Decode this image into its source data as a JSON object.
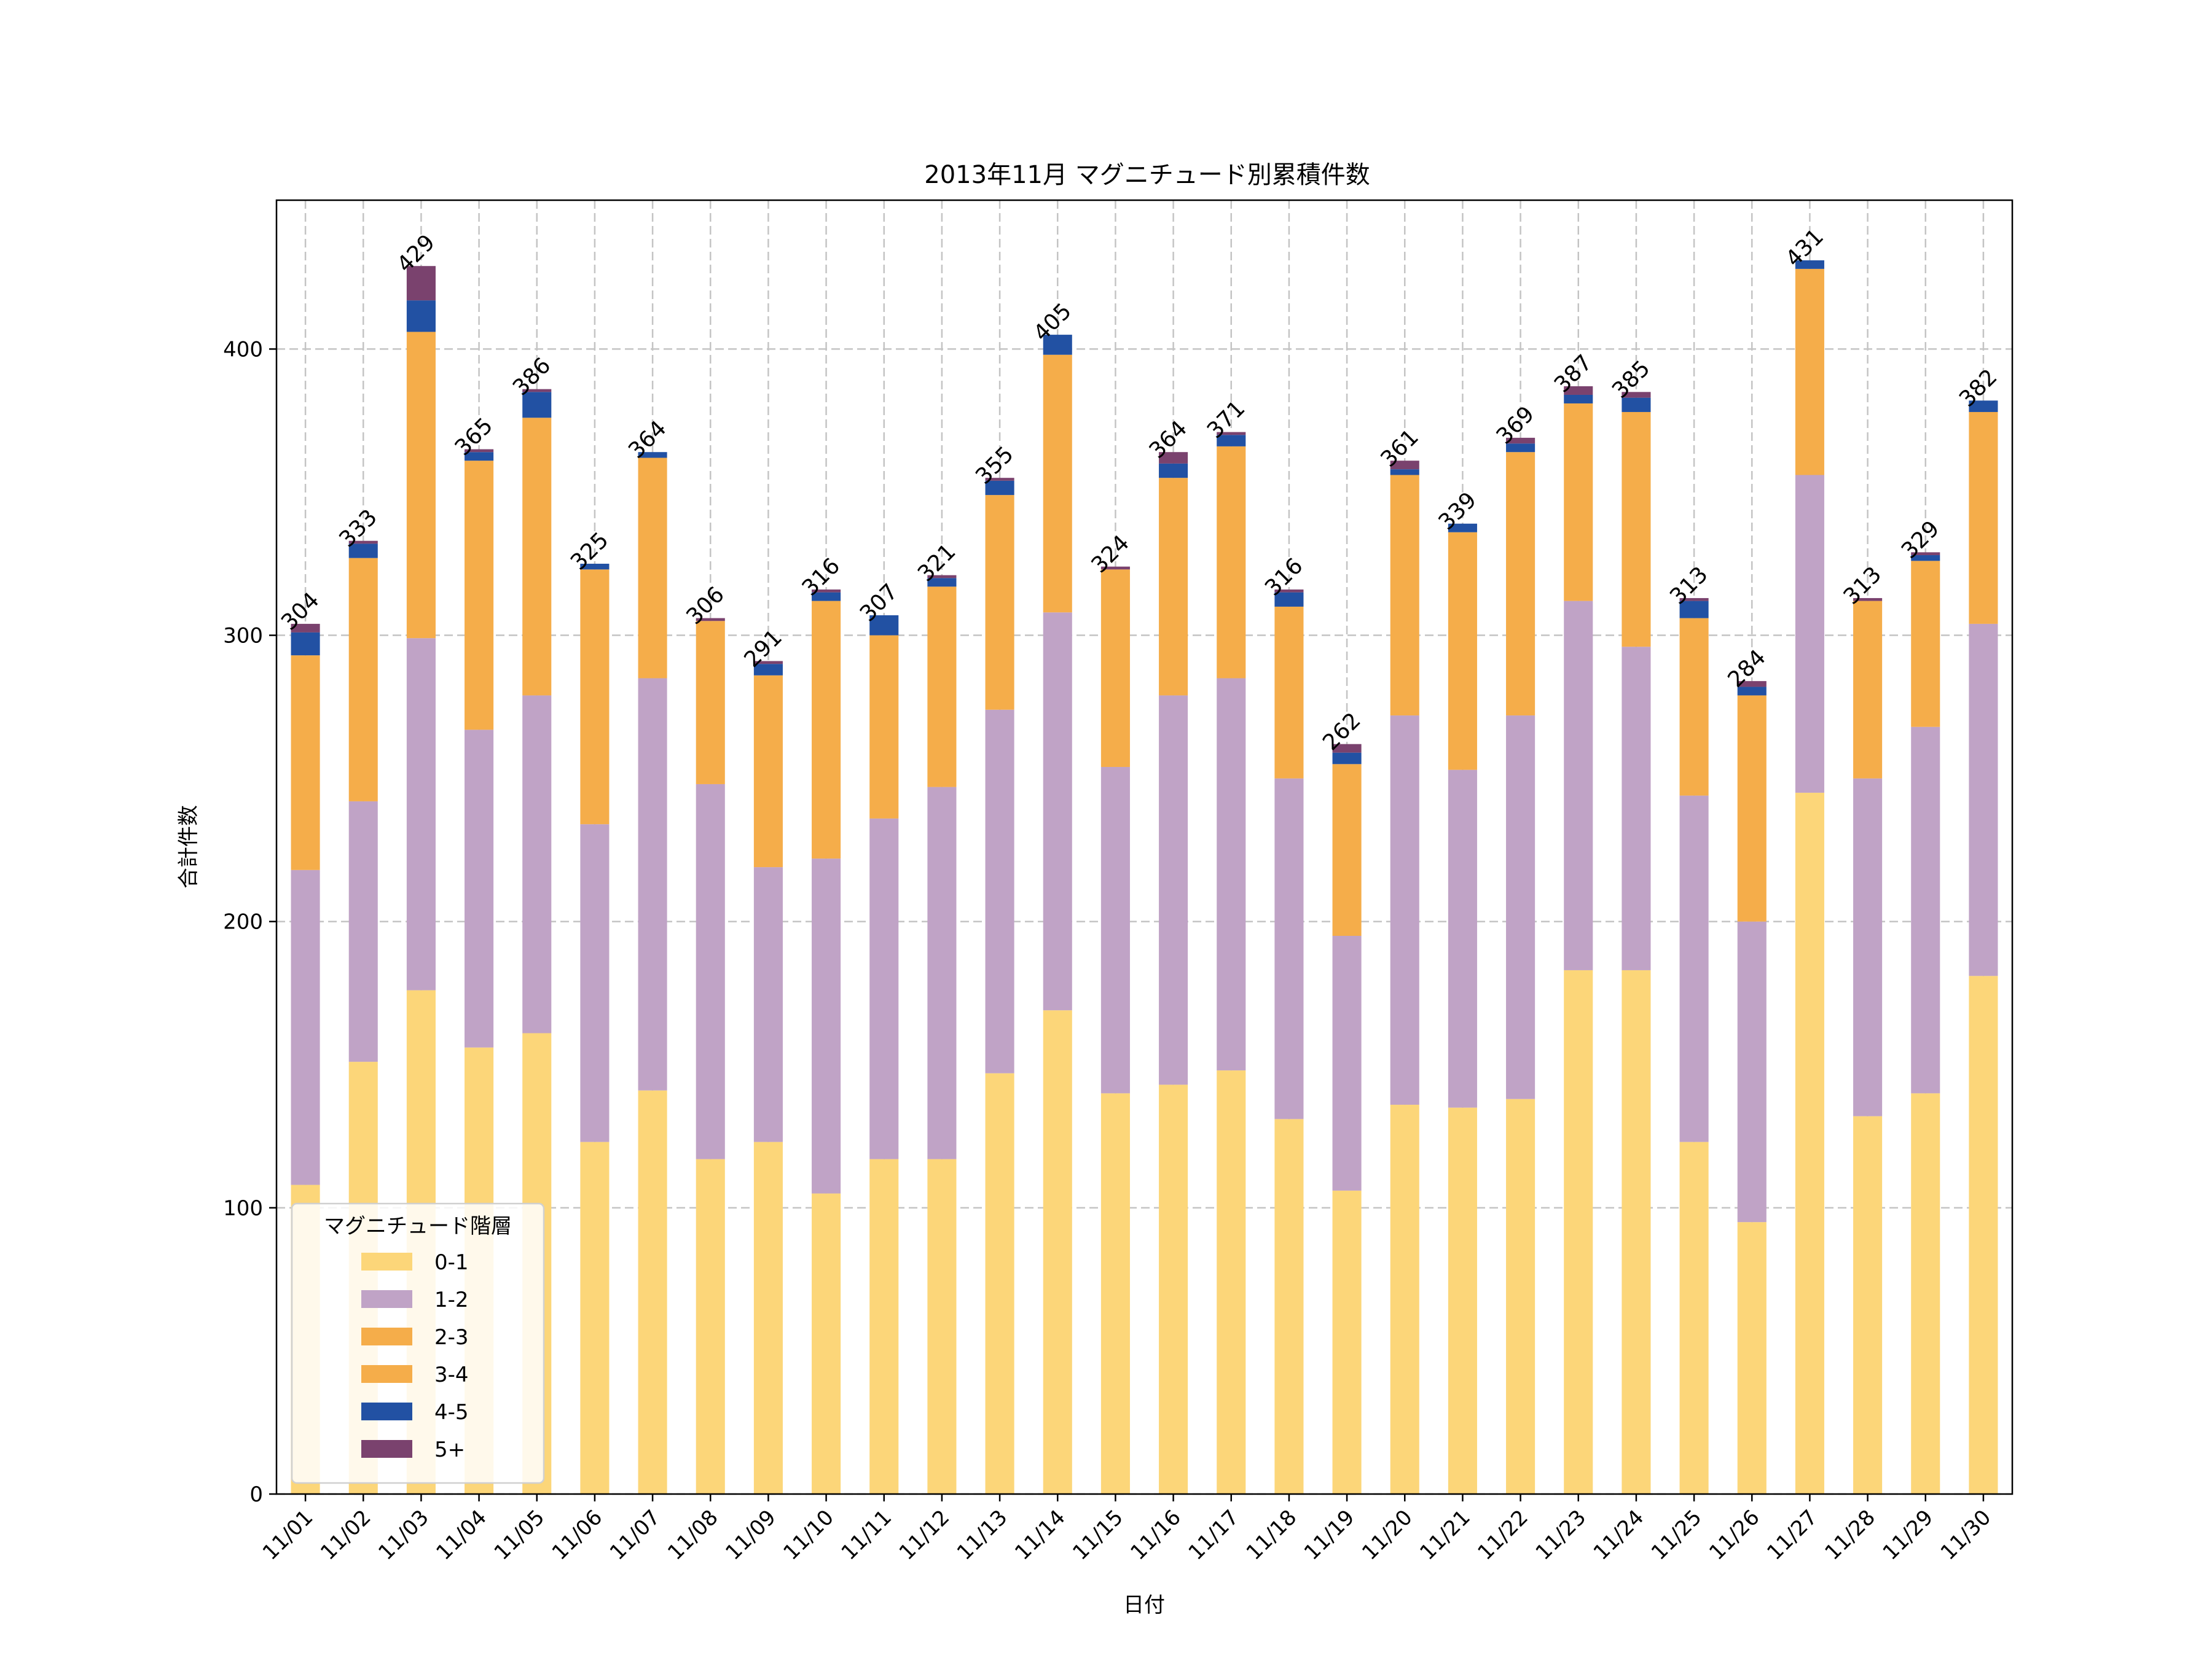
{
  "chart_data": {
    "type": "bar",
    "stacked": true,
    "title": "2013年11月 マグニチュード別累積件数",
    "xlabel": "日付",
    "ylabel": "合計件数",
    "ylim": [
      0,
      452
    ],
    "yticks": [
      0,
      100,
      200,
      300,
      400
    ],
    "grid": true,
    "legend": {
      "title": "マグニチュード階層",
      "placement": "lower-left"
    },
    "categories": [
      "11/01",
      "11/02",
      "11/03",
      "11/04",
      "11/05",
      "11/06",
      "11/07",
      "11/08",
      "11/09",
      "11/10",
      "11/11",
      "11/12",
      "11/13",
      "11/14",
      "11/15",
      "11/16",
      "11/17",
      "11/18",
      "11/19",
      "11/20",
      "11/21",
      "11/22",
      "11/23",
      "11/24",
      "11/25",
      "11/26",
      "11/27",
      "11/28",
      "11/29",
      "11/30"
    ],
    "series": [
      {
        "name": "0-1",
        "color": "#fcd679",
        "values": [
          108,
          151,
          176,
          156,
          161,
          123,
          141,
          117,
          123,
          105,
          117,
          117,
          147,
          169,
          140,
          143,
          148,
          131,
          106,
          136,
          135,
          138,
          183,
          183,
          123,
          95,
          245,
          132,
          140,
          181
        ]
      },
      {
        "name": "1-2",
        "color": "#c0a3c6",
        "values": [
          110,
          91,
          123,
          111,
          118,
          111,
          144,
          131,
          96,
          117,
          119,
          130,
          127,
          139,
          114,
          136,
          137,
          119,
          89,
          136,
          118,
          134,
          129,
          113,
          121,
          105,
          111,
          118,
          128,
          123
        ]
      },
      {
        "name": "2-3",
        "color": "#f5ad4a",
        "values": [
          75,
          85,
          107,
          94,
          97,
          89,
          77,
          57,
          67,
          90,
          64,
          70,
          75,
          90,
          69,
          76,
          81,
          60,
          60,
          84,
          83,
          92,
          69,
          82,
          62,
          79,
          72,
          62,
          58,
          74
        ]
      },
      {
        "name": "3-4",
        "color": "#f5ad4a",
        "values": [
          0,
          0,
          0,
          0,
          0,
          0,
          0,
          0,
          0,
          0,
          0,
          0,
          0,
          0,
          0,
          0,
          0,
          0,
          0,
          0,
          0,
          0,
          0,
          0,
          0,
          0,
          0,
          0,
          0,
          0
        ]
      },
      {
        "name": "4-5",
        "color": "#2251a3",
        "values": [
          8,
          5,
          11,
          3,
          9,
          2,
          2,
          0,
          4,
          3,
          7,
          3,
          5,
          7,
          0,
          5,
          4,
          5,
          4,
          2,
          3,
          3,
          3,
          5,
          6,
          3,
          3,
          0,
          2,
          4
        ]
      },
      {
        "name": "5+",
        "color": "#7a426e",
        "values": [
          3,
          1,
          12,
          1,
          1,
          0,
          0,
          1,
          1,
          1,
          0,
          1,
          1,
          0,
          1,
          4,
          1,
          1,
          3,
          3,
          0,
          2,
          3,
          2,
          1,
          2,
          0,
          1,
          1,
          0
        ]
      }
    ],
    "totals": [
      304,
      333,
      429,
      365,
      386,
      325,
      364,
      306,
      291,
      316,
      307,
      321,
      355,
      405,
      324,
      364,
      371,
      316,
      262,
      361,
      339,
      369,
      387,
      385,
      313,
      284,
      431,
      313,
      329,
      382
    ]
  }
}
